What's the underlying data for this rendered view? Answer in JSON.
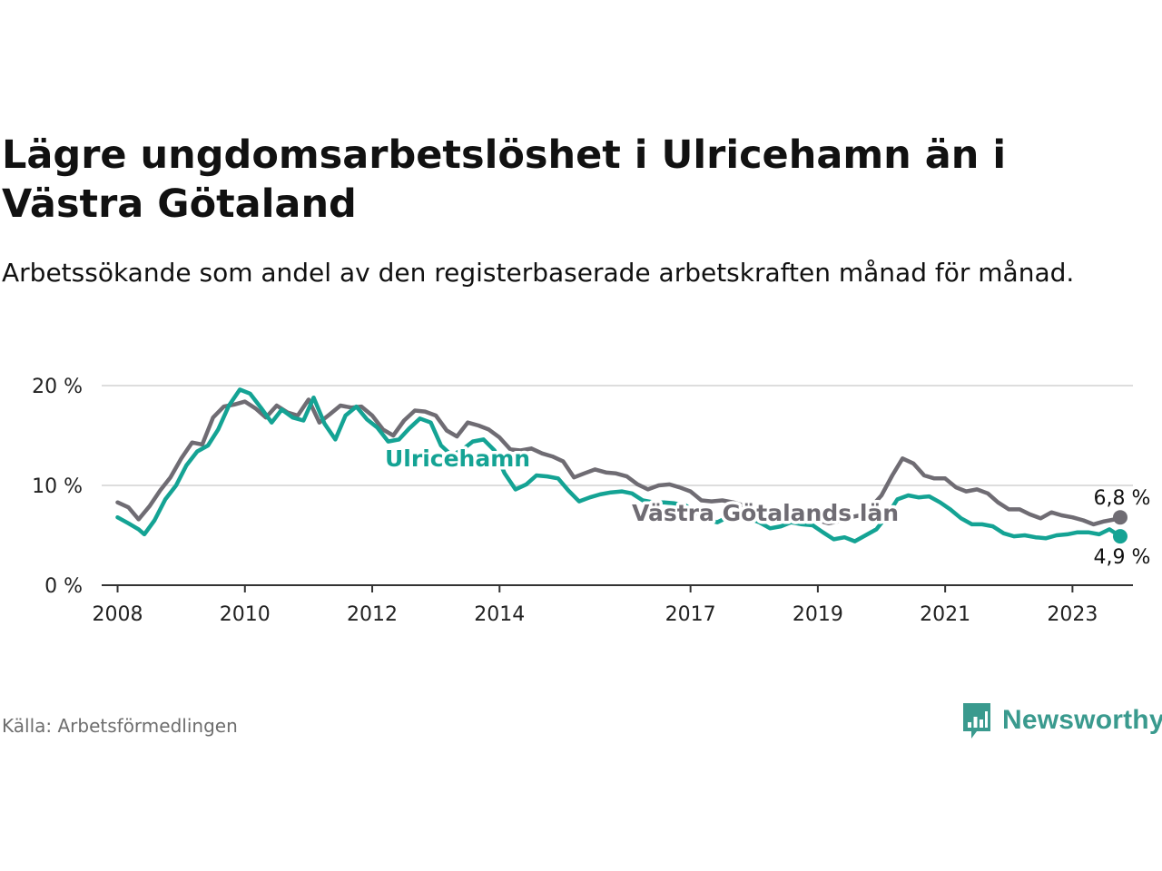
{
  "title": "Lägre ungdomsarbetslöshet i Ulricehamn än i Västra Götaland",
  "subtitle": "Arbetssökande som andel av den registerbaserade arbetskraften månad för månad.",
  "source": "Källa: Arbetsförmedlingen",
  "brand": "Newsworthy",
  "colors": {
    "ulricehamn": "#14a394",
    "vgl": "#6f6c73",
    "grid": "#dddddd",
    "axis": "#333333",
    "brand": "#3a9a8e"
  },
  "chart_data": {
    "type": "line",
    "xlim": [
      2007.75,
      2023.95
    ],
    "ylim": [
      0,
      20
    ],
    "y_ticks": [
      {
        "value": 0,
        "label": "0 %"
      },
      {
        "value": 10,
        "label": "10 %"
      },
      {
        "value": 20,
        "label": "20 %"
      }
    ],
    "x_ticks": [
      {
        "value": 2008,
        "label": "2008"
      },
      {
        "value": 2010,
        "label": "2010"
      },
      {
        "value": 2012,
        "label": "2012"
      },
      {
        "value": 2014,
        "label": "2014"
      },
      {
        "value": 2017,
        "label": "2017"
      },
      {
        "value": 2019,
        "label": "2019"
      },
      {
        "value": 2021,
        "label": "2021"
      },
      {
        "value": 2023,
        "label": "2023"
      }
    ],
    "series": [
      {
        "name": "Västra Götalands län",
        "label": "Västra Götalands län",
        "color": "#6f6c73",
        "end_label": "6,8 %",
        "points": [
          [
            2008,
            8.3
          ],
          [
            2008.17,
            7.8
          ],
          [
            2008.33,
            6.6
          ],
          [
            2008.5,
            7.9
          ],
          [
            2008.67,
            9.5
          ],
          [
            2008.83,
            10.8
          ],
          [
            2009,
            12.7
          ],
          [
            2009.17,
            14.3
          ],
          [
            2009.33,
            14.1
          ],
          [
            2009.5,
            16.8
          ],
          [
            2009.67,
            17.9
          ],
          [
            2009.83,
            18.1
          ],
          [
            2010,
            18.4
          ],
          [
            2010.17,
            17.7
          ],
          [
            2010.33,
            16.8
          ],
          [
            2010.5,
            18.0
          ],
          [
            2010.67,
            17.3
          ],
          [
            2010.83,
            17.0
          ],
          [
            2011,
            18.6
          ],
          [
            2011.17,
            16.3
          ],
          [
            2011.33,
            17.1
          ],
          [
            2011.5,
            18.0
          ],
          [
            2011.67,
            17.8
          ],
          [
            2011.83,
            17.9
          ],
          [
            2012,
            17.0
          ],
          [
            2012.17,
            15.6
          ],
          [
            2012.33,
            15.0
          ],
          [
            2012.5,
            16.5
          ],
          [
            2012.67,
            17.5
          ],
          [
            2012.83,
            17.4
          ],
          [
            2013,
            17.0
          ],
          [
            2013.17,
            15.5
          ],
          [
            2013.33,
            14.9
          ],
          [
            2013.5,
            16.3
          ],
          [
            2013.67,
            16.0
          ],
          [
            2013.83,
            15.6
          ],
          [
            2014,
            14.8
          ],
          [
            2014.17,
            13.6
          ],
          [
            2014.33,
            13.5
          ],
          [
            2014.5,
            13.7
          ],
          [
            2014.67,
            13.2
          ],
          [
            2014.83,
            12.9
          ],
          [
            2015,
            12.4
          ],
          [
            2015.17,
            10.8
          ],
          [
            2015.33,
            11.2
          ],
          [
            2015.5,
            11.6
          ],
          [
            2015.67,
            11.3
          ],
          [
            2015.83,
            11.2
          ],
          [
            2016,
            10.9
          ],
          [
            2016.17,
            10.1
          ],
          [
            2016.33,
            9.6
          ],
          [
            2016.5,
            10.0
          ],
          [
            2016.67,
            10.1
          ],
          [
            2016.83,
            9.8
          ],
          [
            2017,
            9.4
          ],
          [
            2017.17,
            8.5
          ],
          [
            2017.33,
            8.4
          ],
          [
            2017.5,
            8.5
          ],
          [
            2017.67,
            8.3
          ],
          [
            2017.83,
            8.0
          ],
          [
            2018,
            7.6
          ],
          [
            2018.17,
            6.8
          ],
          [
            2018.33,
            6.6
          ],
          [
            2018.5,
            6.8
          ],
          [
            2018.67,
            6.6
          ],
          [
            2018.83,
            6.5
          ],
          [
            2019,
            6.5
          ],
          [
            2019.17,
            6.2
          ],
          [
            2019.33,
            6.4
          ],
          [
            2019.5,
            6.8
          ],
          [
            2019.67,
            7.0
          ],
          [
            2019.83,
            7.8
          ],
          [
            2020,
            9.0
          ],
          [
            2020.17,
            11.0
          ],
          [
            2020.33,
            12.7
          ],
          [
            2020.5,
            12.2
          ],
          [
            2020.67,
            11.0
          ],
          [
            2020.83,
            10.7
          ],
          [
            2021,
            10.7
          ],
          [
            2021.17,
            9.8
          ],
          [
            2021.33,
            9.4
          ],
          [
            2021.5,
            9.6
          ],
          [
            2021.67,
            9.2
          ],
          [
            2021.83,
            8.3
          ],
          [
            2022,
            7.6
          ],
          [
            2022.17,
            7.6
          ],
          [
            2022.33,
            7.1
          ],
          [
            2022.5,
            6.7
          ],
          [
            2022.67,
            7.3
          ],
          [
            2022.83,
            7.0
          ],
          [
            2023,
            6.8
          ],
          [
            2023.17,
            6.5
          ],
          [
            2023.33,
            6.1
          ],
          [
            2023.5,
            6.4
          ],
          [
            2023.67,
            6.6
          ],
          [
            2023.75,
            6.8
          ]
        ]
      },
      {
        "name": "Ulricehamn",
        "label": "Ulricehamn",
        "color": "#14a394",
        "end_label": "4,9 %",
        "points": [
          [
            2008,
            6.8
          ],
          [
            2008.17,
            6.2
          ],
          [
            2008.33,
            5.6
          ],
          [
            2008.42,
            5.1
          ],
          [
            2008.58,
            6.5
          ],
          [
            2008.75,
            8.6
          ],
          [
            2008.92,
            10.0
          ],
          [
            2009.08,
            12.0
          ],
          [
            2009.25,
            13.4
          ],
          [
            2009.42,
            14.0
          ],
          [
            2009.58,
            15.6
          ],
          [
            2009.75,
            18.0
          ],
          [
            2009.92,
            19.6
          ],
          [
            2010.08,
            19.2
          ],
          [
            2010.25,
            17.8
          ],
          [
            2010.42,
            16.3
          ],
          [
            2010.58,
            17.6
          ],
          [
            2010.75,
            16.8
          ],
          [
            2010.92,
            16.5
          ],
          [
            2011.08,
            18.8
          ],
          [
            2011.25,
            16.2
          ],
          [
            2011.42,
            14.6
          ],
          [
            2011.58,
            17.0
          ],
          [
            2011.75,
            17.9
          ],
          [
            2011.92,
            16.6
          ],
          [
            2012.08,
            15.8
          ],
          [
            2012.25,
            14.4
          ],
          [
            2012.42,
            14.6
          ],
          [
            2012.58,
            15.7
          ],
          [
            2012.75,
            16.7
          ],
          [
            2012.92,
            16.3
          ],
          [
            2013.08,
            14.0
          ],
          [
            2013.25,
            13.0
          ],
          [
            2013.42,
            13.6
          ],
          [
            2013.58,
            14.4
          ],
          [
            2013.75,
            14.6
          ],
          [
            2013.92,
            13.5
          ],
          [
            2014.08,
            11.2
          ],
          [
            2014.25,
            9.6
          ],
          [
            2014.42,
            10.1
          ],
          [
            2014.58,
            11.0
          ],
          [
            2014.75,
            10.9
          ],
          [
            2014.92,
            10.7
          ],
          [
            2015.08,
            9.5
          ],
          [
            2015.25,
            8.4
          ],
          [
            2015.42,
            8.8
          ],
          [
            2015.58,
            9.1
          ],
          [
            2015.75,
            9.3
          ],
          [
            2015.92,
            9.4
          ],
          [
            2016.08,
            9.2
          ],
          [
            2016.25,
            8.5
          ],
          [
            2016.42,
            8.3
          ],
          [
            2016.58,
            8.3
          ],
          [
            2016.75,
            8.2
          ],
          [
            2016.92,
            8.0
          ],
          [
            2017.08,
            7.3
          ],
          [
            2017.25,
            6.6
          ],
          [
            2017.42,
            6.3
          ],
          [
            2017.58,
            6.8
          ],
          [
            2017.75,
            6.9
          ],
          [
            2017.92,
            6.7
          ],
          [
            2018.08,
            6.3
          ],
          [
            2018.25,
            5.7
          ],
          [
            2018.42,
            5.9
          ],
          [
            2018.58,
            6.3
          ],
          [
            2018.75,
            6.1
          ],
          [
            2018.92,
            6.0
          ],
          [
            2019.08,
            5.3
          ],
          [
            2019.25,
            4.6
          ],
          [
            2019.42,
            4.8
          ],
          [
            2019.58,
            4.4
          ],
          [
            2019.75,
            5.0
          ],
          [
            2019.92,
            5.6
          ],
          [
            2020.08,
            6.9
          ],
          [
            2020.25,
            8.6
          ],
          [
            2020.42,
            9.0
          ],
          [
            2020.58,
            8.8
          ],
          [
            2020.75,
            8.9
          ],
          [
            2020.92,
            8.3
          ],
          [
            2021.08,
            7.6
          ],
          [
            2021.25,
            6.7
          ],
          [
            2021.42,
            6.1
          ],
          [
            2021.58,
            6.1
          ],
          [
            2021.75,
            5.9
          ],
          [
            2021.92,
            5.2
          ],
          [
            2022.08,
            4.9
          ],
          [
            2022.25,
            5.0
          ],
          [
            2022.42,
            4.8
          ],
          [
            2022.58,
            4.7
          ],
          [
            2022.75,
            5.0
          ],
          [
            2022.92,
            5.1
          ],
          [
            2023.08,
            5.3
          ],
          [
            2023.25,
            5.3
          ],
          [
            2023.42,
            5.1
          ],
          [
            2023.58,
            5.6
          ],
          [
            2023.75,
            4.9
          ]
        ]
      }
    ]
  }
}
